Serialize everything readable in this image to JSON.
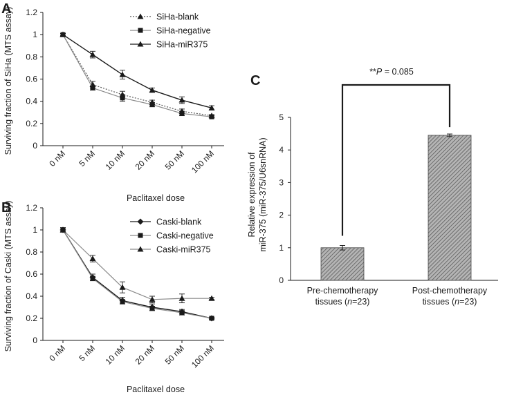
{
  "colors": {
    "ink": "#1a1a1a",
    "grey": "#8a8a8a",
    "bar_fill": "#9a9a9a"
  },
  "chart_data": [
    {
      "panel": "A",
      "type": "line",
      "categories": [
        "0 nM",
        "5 nM",
        "10 nM",
        "20 nM",
        "50 nM",
        "100 nM"
      ],
      "ylabel": "Surviving fraction of SiHa (MTS assay)",
      "xlabel": "Paclitaxel dose",
      "ylim": [
        0,
        1.2
      ],
      "yticks": [
        "0",
        "0.2",
        "0.4",
        "0.6",
        "0.8",
        "1",
        "1.2"
      ],
      "legend_position": "top-right",
      "series": [
        {
          "name": "SiHa-blank",
          "marker": "triangle",
          "line": "dotted",
          "values": [
            1.0,
            0.55,
            0.46,
            0.39,
            0.31,
            0.27
          ],
          "errors": [
            0.01,
            0.03,
            0.03,
            0.02,
            0.02,
            0.01
          ]
        },
        {
          "name": "SiHa-negative",
          "marker": "square",
          "line": "solid-grey",
          "values": [
            1.0,
            0.52,
            0.43,
            0.37,
            0.29,
            0.26
          ],
          "errors": [
            0.01,
            0.02,
            0.03,
            0.02,
            0.02,
            0.01
          ]
        },
        {
          "name": "SiHa-miR375",
          "marker": "triangle",
          "line": "solid",
          "values": [
            1.0,
            0.82,
            0.64,
            0.5,
            0.41,
            0.34
          ],
          "errors": [
            0.01,
            0.03,
            0.04,
            0.02,
            0.03,
            0.02
          ]
        }
      ]
    },
    {
      "panel": "B",
      "type": "line",
      "categories": [
        "0 nM",
        "5 nM",
        "10 nM",
        "20 nM",
        "50 nM",
        "100 nM"
      ],
      "ylabel": "Surviving fraction of Caski (MTS assay)",
      "xlabel": "Paclitaxel dose",
      "ylim": [
        0,
        1.2
      ],
      "yticks": [
        "0",
        "0.2",
        "0.4",
        "0.6",
        "0.8",
        "1",
        "1.2"
      ],
      "legend_position": "top-right",
      "series": [
        {
          "name": "Caski-blank",
          "marker": "diamond",
          "line": "solid",
          "values": [
            1.0,
            0.57,
            0.36,
            0.3,
            0.26,
            0.2
          ],
          "errors": [
            0.02,
            0.03,
            0.03,
            0.03,
            0.02,
            0.01
          ]
        },
        {
          "name": "Caski-negative",
          "marker": "square",
          "line": "solid-grey",
          "values": [
            1.0,
            0.56,
            0.35,
            0.29,
            0.25,
            0.2
          ],
          "errors": [
            0.02,
            0.02,
            0.02,
            0.02,
            0.02,
            0.01
          ]
        },
        {
          "name": "Caski-miR375",
          "marker": "triangle",
          "line": "solid-grey",
          "values": [
            1.0,
            0.74,
            0.48,
            0.37,
            0.38,
            0.38
          ],
          "errors": [
            0.02,
            0.03,
            0.05,
            0.03,
            0.04,
            0.01
          ]
        }
      ]
    },
    {
      "panel": "C",
      "type": "bar",
      "categories": [
        "Pre-chemotherapy tissues (n=23)",
        "Post-chemotherapy tissues (n=23)"
      ],
      "category_lines": [
        [
          "Pre-chemotherapy",
          "tissues (",
          "n",
          "=23)"
        ],
        [
          "Post-chemotherapy",
          "tissues (",
          "n",
          "=23)"
        ]
      ],
      "values": [
        1.0,
        4.45
      ],
      "errors": [
        0.07,
        0.04
      ],
      "ylabel_lines": [
        "Relative expression of",
        "miR-375 (miR-375/U6snRNA)"
      ],
      "ylim": [
        0,
        5
      ],
      "yticks": [
        "0",
        "1",
        "2",
        "3",
        "4",
        "5"
      ],
      "annotation": {
        "prefix": "**",
        "italic": "P",
        "rest": " = 0.085"
      }
    }
  ]
}
